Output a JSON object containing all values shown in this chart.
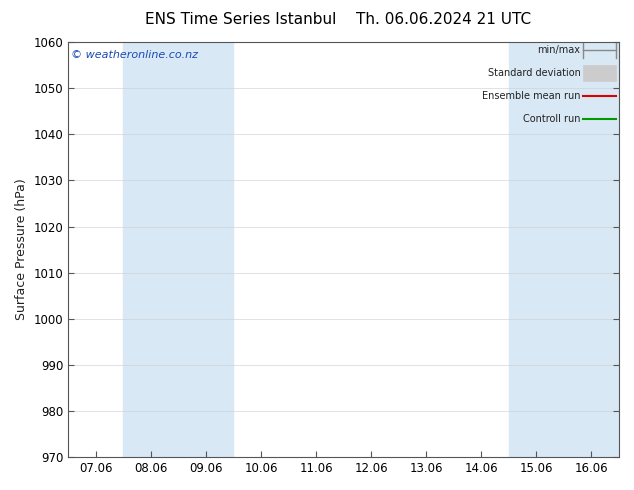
{
  "title_left": "ENS Time Series Istanbul",
  "title_right": "Th. 06.06.2024 21 UTC",
  "ylabel": "Surface Pressure (hPa)",
  "ylim": [
    970,
    1060
  ],
  "yticks": [
    970,
    980,
    990,
    1000,
    1010,
    1020,
    1030,
    1040,
    1050,
    1060
  ],
  "x_labels": [
    "07.06",
    "08.06",
    "09.06",
    "10.06",
    "11.06",
    "12.06",
    "13.06",
    "14.06",
    "15.06",
    "16.06"
  ],
  "x_values": [
    0,
    1,
    2,
    3,
    4,
    5,
    6,
    7,
    8,
    9
  ],
  "shaded_columns": [
    1,
    2,
    8,
    9
  ],
  "shade_color": "#d8e8f5",
  "watermark": "© weatheronline.co.nz",
  "legend_labels": [
    "min/max",
    "Standard deviation",
    "Ensemble mean run",
    "Controll run"
  ],
  "legend_colors_line": [
    "#999999",
    "#bbbbbb",
    "#dd0000",
    "#009900"
  ],
  "bg_color": "#ffffff",
  "plot_bg": "#ffffff",
  "title_fontsize": 11,
  "axis_label_fontsize": 9,
  "tick_fontsize": 8.5
}
